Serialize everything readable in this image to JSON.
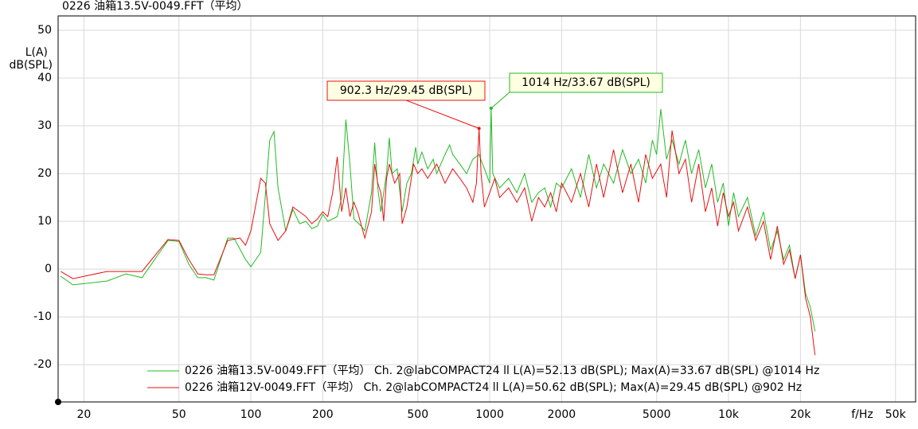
{
  "chart_data": {
    "type": "line",
    "title": "0226 油箱13.5V-0049.FFT（平均）",
    "y_label": [
      "L(A)",
      "dB(SPL)"
    ],
    "x_label": "f/Hz",
    "log_x": true,
    "grid": true,
    "legend": "bottom-right",
    "xlim": [
      15.6,
      60700
    ],
    "ylim": [
      -27.8,
      53
    ],
    "xticks": [
      20,
      50,
      100,
      200,
      500,
      1000,
      2000,
      5000,
      {
        "value": 10000,
        "label": "10k"
      },
      {
        "value": 20000,
        "label": "20k"
      },
      {
        "value": 50000,
        "label": "50k"
      }
    ],
    "yticks": [
      -20,
      -10,
      0,
      10,
      20,
      30,
      40,
      50
    ],
    "series": [
      {
        "name": "0226 油箱13.5V-0049.FFT（平均） Ch. 2@labCOMPACT24 ll L(A)=52.13 dB(SPL); Max(A)=33.67 dB(SPL) @1014 Hz",
        "color": "#22bb22",
        "x": [
          16,
          18,
          25,
          30,
          35,
          45,
          50,
          55,
          60,
          65,
          70,
          80,
          85,
          95,
          100,
          110,
          120,
          125,
          130,
          140,
          150,
          160,
          170,
          180,
          190,
          200,
          210,
          230,
          240,
          250,
          260,
          270,
          290,
          300,
          320,
          330,
          340,
          350,
          370,
          380,
          390,
          410,
          430,
          450,
          470,
          490,
          500,
          520,
          550,
          580,
          600,
          650,
          680,
          700,
          750,
          800,
          850,
          902,
          950,
          1000,
          1014,
          1030,
          1100,
          1200,
          1300,
          1400,
          1500,
          1600,
          1700,
          1800,
          1900,
          2000,
          2200,
          2400,
          2600,
          2800,
          3000,
          3300,
          3600,
          3900,
          4200,
          4500,
          4800,
          5000,
          5200,
          5500,
          5800,
          6200,
          6600,
          7000,
          7500,
          8000,
          8500,
          9000,
          9500,
          10000,
          10500,
          11000,
          12000,
          13000,
          14000,
          15000,
          16000,
          17000,
          18000,
          19000,
          20000,
          21000,
          22000,
          23000
        ],
        "values": [
          -1.5,
          -3.3,
          -2.5,
          -1,
          -1.8,
          6,
          5.8,
          1,
          -1.8,
          -1.8,
          -2.3,
          6.5,
          6.5,
          2,
          0.5,
          3.5,
          27,
          28.8,
          17,
          8,
          12.5,
          9.5,
          10,
          8.5,
          9,
          11.5,
          10,
          11,
          15,
          31.3,
          22,
          10.5,
          9,
          8,
          16,
          26.5,
          17,
          12,
          20,
          27.5,
          20,
          21,
          12,
          18,
          20,
          25.5,
          22,
          24.5,
          21,
          23,
          20,
          24,
          26,
          24,
          22,
          20,
          23,
          24,
          21,
          18,
          33.67,
          20,
          17,
          19,
          16,
          20,
          14,
          16,
          17,
          13,
          18,
          17,
          21,
          15,
          24,
          17,
          22,
          18,
          25,
          20,
          23,
          18,
          27,
          24,
          33.5,
          23,
          27,
          22,
          27,
          20,
          25,
          17,
          22,
          14,
          18,
          9,
          16,
          11,
          15,
          7,
          12,
          4,
          8,
          2,
          5,
          -2,
          3,
          -5,
          -8,
          -13
        ]
      },
      {
        "name": "0226 油箱12V-0049.FFT（平均） Ch. 2@labCOMPACT24 ll L(A)=50.62 dB(SPL); Max(A)=29.45 dB(SPL) @902 Hz",
        "color": "#e81010",
        "x": [
          16,
          18,
          25,
          35,
          45,
          50,
          55,
          60,
          65,
          70,
          80,
          90,
          95,
          100,
          110,
          115,
          120,
          130,
          140,
          150,
          160,
          170,
          180,
          190,
          200,
          210,
          220,
          230,
          240,
          250,
          260,
          270,
          280,
          300,
          320,
          330,
          340,
          350,
          360,
          370,
          380,
          400,
          420,
          430,
          450,
          460,
          480,
          500,
          520,
          550,
          600,
          650,
          700,
          750,
          800,
          850,
          880,
          902.3,
          920,
          950,
          1000,
          1050,
          1100,
          1200,
          1300,
          1400,
          1500,
          1600,
          1700,
          1800,
          1900,
          2000,
          2200,
          2400,
          2600,
          2800,
          3000,
          3300,
          3600,
          3900,
          4200,
          4500,
          4800,
          5200,
          5500,
          5800,
          6200,
          6600,
          7000,
          7500,
          8000,
          8500,
          9000,
          9500,
          10000,
          10500,
          11000,
          12000,
          13000,
          14000,
          15000,
          16000,
          17000,
          18000,
          19000,
          20000,
          21000,
          22000,
          23000
        ],
        "values": [
          -0.5,
          -2,
          -0.5,
          -0.5,
          6.2,
          6,
          2,
          -1,
          -1.2,
          -1.2,
          6,
          6.5,
          5,
          8,
          19,
          18,
          9.5,
          6,
          8,
          13,
          12,
          11,
          9.5,
          10.5,
          12,
          11,
          16,
          23.5,
          12,
          17,
          11,
          14,
          12,
          6.5,
          12,
          22,
          18,
          16,
          10,
          19,
          22,
          18,
          20,
          9.5,
          13,
          16,
          22,
          20,
          21,
          19,
          22,
          18,
          21,
          19,
          17,
          14,
          18,
          29.45,
          20,
          13,
          16,
          19,
          15,
          17,
          14,
          17,
          10,
          15,
          13,
          16,
          12,
          18,
          14,
          20,
          13,
          22,
          15,
          25,
          16,
          22,
          14,
          24,
          19,
          22,
          15,
          29,
          20,
          23,
          14,
          22,
          12,
          17,
          9,
          16,
          11,
          14,
          8,
          13,
          6,
          10,
          2,
          9,
          1,
          4,
          -2,
          3,
          -6,
          -10,
          -18
        ]
      }
    ],
    "annotations": [
      {
        "text": "902.3 Hz/29.45 dB(SPL)",
        "x": 902.3,
        "y": 29.45,
        "color": "#e81010"
      },
      {
        "text": "1014 Hz/33.67 dB(SPL)",
        "x": 1014,
        "y": 33.67,
        "color": "#22bb22"
      }
    ]
  }
}
